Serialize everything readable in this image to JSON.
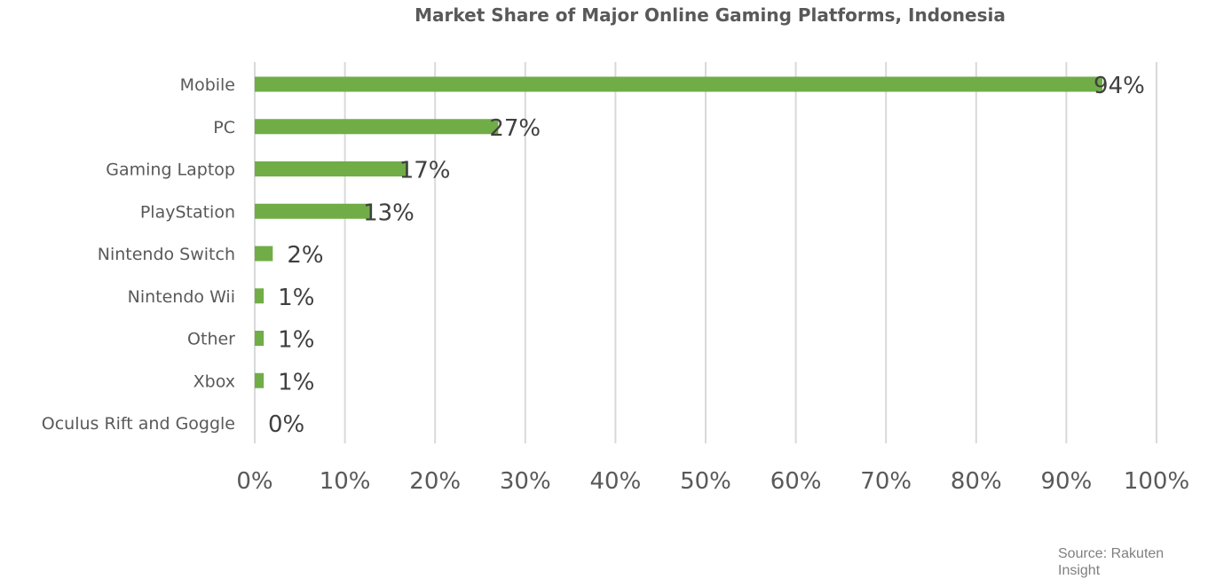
{
  "source": "Source: Rakuten Insight",
  "chart_data": {
    "type": "bar",
    "orientation": "horizontal",
    "title": "Market Share of Major Online Gaming Platforms, Indonesia",
    "categories": [
      "Mobile",
      "PC",
      "Gaming Laptop",
      "PlayStation",
      "Nintendo Switch",
      "Nintendo Wii",
      "Other",
      "Xbox",
      "Oculus Rift and Goggle"
    ],
    "values": [
      94,
      27,
      17,
      13,
      2,
      1,
      1,
      1,
      0
    ],
    "data_labels": [
      "94%",
      "27%",
      "17%",
      "13%",
      "2%",
      "1%",
      "1%",
      "1%",
      "0%"
    ],
    "xlabel": "",
    "ylabel": "",
    "xlim": [
      0,
      100
    ],
    "x_ticks": [
      0,
      10,
      20,
      30,
      40,
      50,
      60,
      70,
      80,
      90,
      100
    ],
    "x_tick_labels": [
      "0%",
      "10%",
      "20%",
      "30%",
      "40%",
      "50%",
      "60%",
      "70%",
      "80%",
      "90%",
      "100%"
    ],
    "grid": "vertical",
    "legend": "none",
    "bar_color": "#70ad47"
  }
}
